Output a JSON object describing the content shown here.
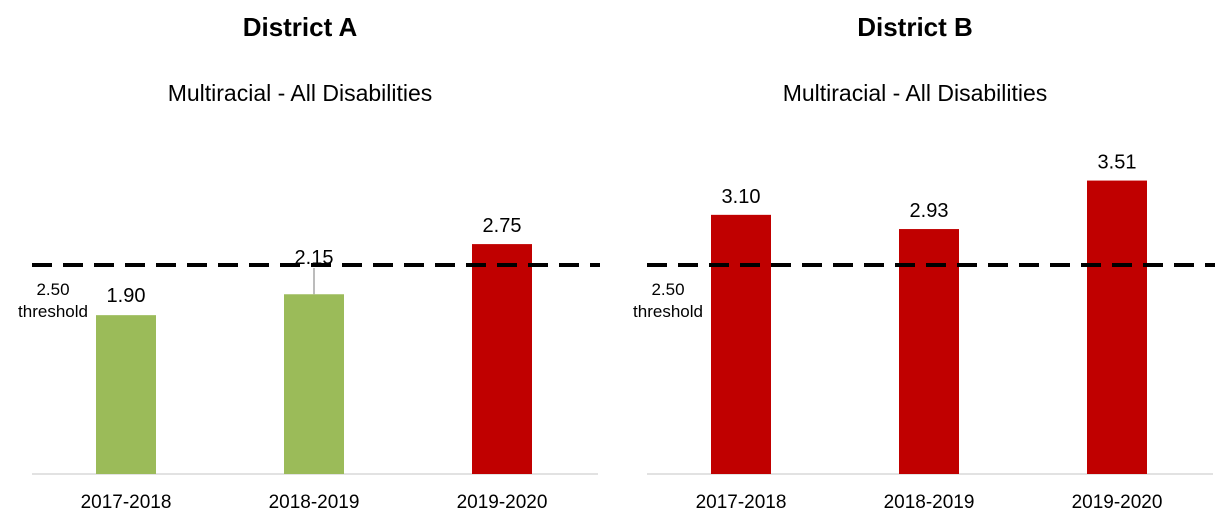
{
  "chart_data": [
    {
      "type": "bar",
      "title": "District A",
      "subtitle": "Multiracial - All Disabilities",
      "categories": [
        "2017-2018",
        "2018-2019",
        "2019-2020"
      ],
      "values": [
        1.9,
        2.15,
        2.75
      ],
      "value_labels": [
        "1.90",
        "2.15",
        "2.75"
      ],
      "bar_colors": [
        "#9bbb59",
        "#9bbb59",
        "#c00000"
      ],
      "threshold": {
        "value": 2.5,
        "label_value": "2.50",
        "label_text": "threshold"
      },
      "ylim": [
        0,
        3.7
      ],
      "grid": false,
      "xlabel": "",
      "ylabel": ""
    },
    {
      "type": "bar",
      "title": "District B",
      "subtitle": "Multiracial - All Disabilities",
      "categories": [
        "2017-2018",
        "2018-2019",
        "2019-2020"
      ],
      "values": [
        3.1,
        2.93,
        3.51
      ],
      "value_labels": [
        "3.10",
        "2.93",
        "3.51"
      ],
      "bar_colors": [
        "#c00000",
        "#c00000",
        "#c00000"
      ],
      "threshold": {
        "value": 2.5,
        "label_value": "2.50",
        "label_text": "threshold"
      },
      "ylim": [
        0,
        3.7
      ],
      "grid": false,
      "xlabel": "",
      "ylabel": ""
    }
  ]
}
